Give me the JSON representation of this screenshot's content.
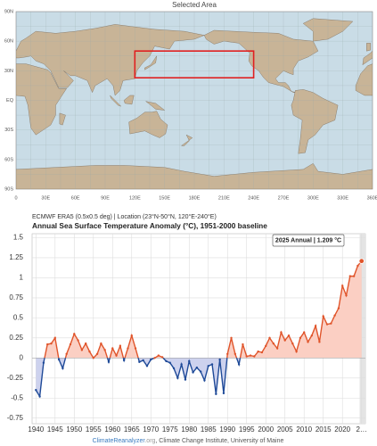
{
  "map": {
    "title": "Selected Area",
    "lat_labels": [
      "90N",
      "60N",
      "30N",
      "EQ",
      "30S",
      "60S",
      "90S"
    ],
    "lon_labels": [
      "0",
      "30E",
      "60E",
      "90E",
      "120E",
      "150E",
      "180E",
      "210E",
      "240E",
      "270E",
      "300E",
      "330E",
      "360E"
    ]
  },
  "chart_data": {
    "type": "area-line",
    "subtitle": "ECMWF ERA5 (0.5x0.5 deg) | Location (23°N-50°N, 120°E-240°E)",
    "title": "Annual Sea Surface Temperature Anomaly (°C), 1951-2000 baseline",
    "annotation": "2025 Annual | 1.209 °C",
    "x": [
      1940,
      1941,
      1942,
      1943,
      1944,
      1945,
      1946,
      1947,
      1948,
      1949,
      1950,
      1951,
      1952,
      1953,
      1954,
      1955,
      1956,
      1957,
      1958,
      1959,
      1960,
      1961,
      1962,
      1963,
      1964,
      1965,
      1966,
      1967,
      1968,
      1969,
      1970,
      1971,
      1972,
      1973,
      1974,
      1975,
      1976,
      1977,
      1978,
      1979,
      1980,
      1981,
      1982,
      1983,
      1984,
      1985,
      1986,
      1987,
      1988,
      1989,
      1990,
      1991,
      1992,
      1993,
      1994,
      1995,
      1996,
      1997,
      1998,
      1999,
      2000,
      2001,
      2002,
      2003,
      2004,
      2005,
      2006,
      2007,
      2008,
      2009,
      2010,
      2011,
      2012,
      2013,
      2014,
      2015,
      2016,
      2017,
      2018,
      2019,
      2020,
      2021,
      2022,
      2023,
      2024,
      2025
    ],
    "values": [
      -0.4,
      -0.48,
      -0.06,
      0.17,
      0.18,
      0.25,
      -0.02,
      -0.13,
      0.05,
      0.17,
      0.3,
      0.22,
      0.1,
      0.18,
      0.08,
      0.0,
      0.05,
      0.18,
      0.1,
      -0.05,
      0.12,
      0.03,
      0.15,
      -0.03,
      0.12,
      0.28,
      0.12,
      -0.05,
      -0.03,
      -0.1,
      -0.02,
      0.0,
      0.03,
      0.01,
      -0.04,
      -0.06,
      -0.13,
      -0.25,
      -0.08,
      -0.27,
      -0.04,
      -0.18,
      -0.12,
      -0.17,
      -0.28,
      -0.1,
      -0.08,
      -0.45,
      -0.02,
      -0.44,
      0.05,
      0.25,
      0.05,
      -0.08,
      0.17,
      0.02,
      0.03,
      0.02,
      0.08,
      0.07,
      0.15,
      0.25,
      0.18,
      0.12,
      0.32,
      0.22,
      0.28,
      0.18,
      0.08,
      0.25,
      0.32,
      0.2,
      0.28,
      0.4,
      0.2,
      0.52,
      0.42,
      0.43,
      0.53,
      0.62,
      0.9,
      0.78,
      1.02,
      1.02,
      1.15,
      1.209
    ],
    "xlim": [
      1939,
      2026
    ],
    "xticks": [
      1940,
      1945,
      1950,
      1955,
      1960,
      1965,
      1970,
      1975,
      1980,
      1985,
      1990,
      1995,
      2000,
      2005,
      2010,
      2015,
      2020,
      {
        "value": 2025,
        "label": "2…"
      }
    ],
    "ylim": [
      -0.82,
      1.55
    ],
    "yticks": [
      -0.75,
      -0.5,
      -0.25,
      0,
      0.25,
      0.5,
      0.75,
      1,
      1.25,
      1.5
    ],
    "grid": true,
    "colors": {
      "positive": "#e0542a",
      "negative": "#1f4a98",
      "fill_positive": "#fbcfc3",
      "fill_negative": "#cdd2ee"
    },
    "footer": [
      "ClimateReanalyzer",
      ".org",
      ", Climate Change Institute, University of Maine"
    ]
  }
}
